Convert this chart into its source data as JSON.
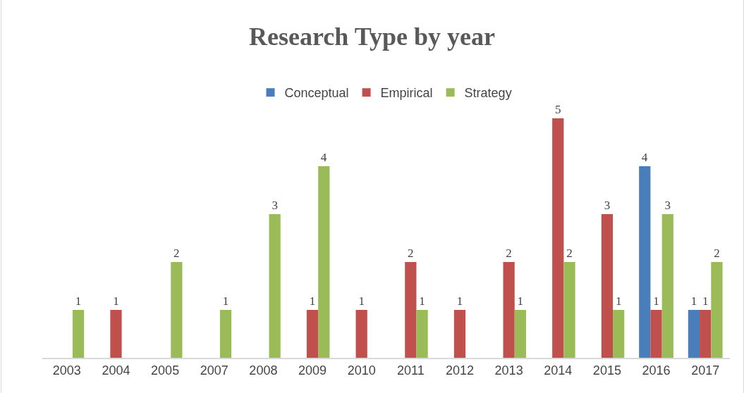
{
  "chart_data": {
    "type": "bar",
    "title": "Research Type by year",
    "categories": [
      "2003",
      "2004",
      "2005",
      "2007",
      "2008",
      "2009",
      "2010",
      "2011",
      "2012",
      "2013",
      "2014",
      "2015",
      "2016",
      "2017"
    ],
    "series": [
      {
        "name": "Conceptual",
        "color": "#4a7ebb",
        "values": [
          null,
          null,
          null,
          null,
          null,
          null,
          null,
          null,
          null,
          null,
          null,
          null,
          4,
          1
        ]
      },
      {
        "name": "Empirical",
        "color": "#c0504d",
        "values": [
          null,
          1,
          null,
          null,
          null,
          1,
          1,
          2,
          1,
          2,
          5,
          3,
          1,
          1
        ]
      },
      {
        "name": "Strategy",
        "color": "#9bbb59",
        "values": [
          1,
          null,
          2,
          1,
          3,
          4,
          null,
          1,
          null,
          1,
          2,
          1,
          3,
          2
        ]
      }
    ],
    "data_labels": true,
    "tick_labels": "x",
    "grid": false,
    "legend": "top"
  }
}
